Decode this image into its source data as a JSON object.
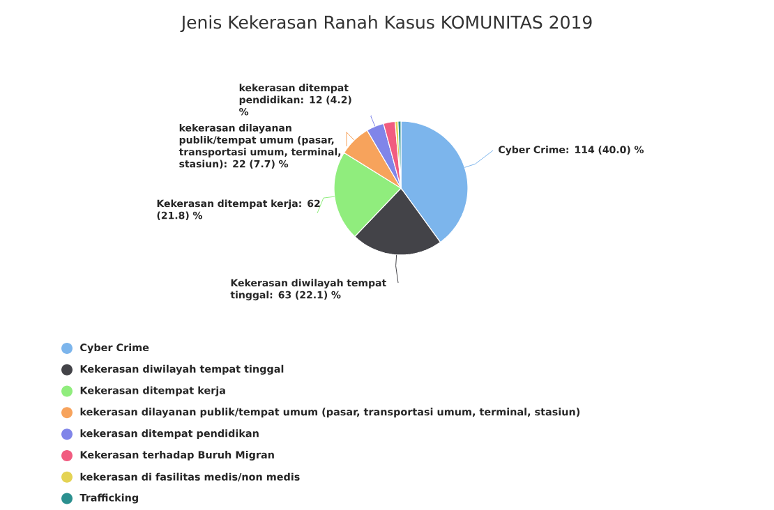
{
  "chart_data": {
    "type": "pie",
    "title": "Jenis Kekerasan Ranah Kasus KOMUNITAS 2019",
    "categories": [
      "Cyber Crime",
      "Kekerasan diwilayah tempat tinggal",
      "Kekerasan ditempat kerja",
      "kekerasan dilayanan publik/tempat umum (pasar, transportasi umum, terminal, stasiun)",
      "kekerasan ditempat pendidikan",
      "Kekerasan terhadap Buruh Migran",
      "kekerasan di fasilitas medis/non medis",
      "Trafficking"
    ],
    "values": [
      114,
      63,
      62,
      22,
      12,
      8,
      2,
      2
    ],
    "value_labels": [
      "Cyber Crime: 114 (40.0) %",
      "Kekerasan diwilayah tempat tinggal: 63 (22.1) %",
      "Kekerasan ditempat kerja: 62 (21.8) %",
      "kekerasan dilayanan publik/tempat umum (pasar, transportasi umum, terminal, stasiun): 22 (7.7) %",
      "kekerasan ditempat pendidikan: 12 (4.2) %",
      null,
      null,
      null
    ],
    "colors": [
      "#7cb5ec",
      "#434348",
      "#90ed7d",
      "#f7a35c",
      "#8085e9",
      "#f15c80",
      "#e4d354",
      "#2b908f"
    ],
    "legend": "bottom"
  }
}
